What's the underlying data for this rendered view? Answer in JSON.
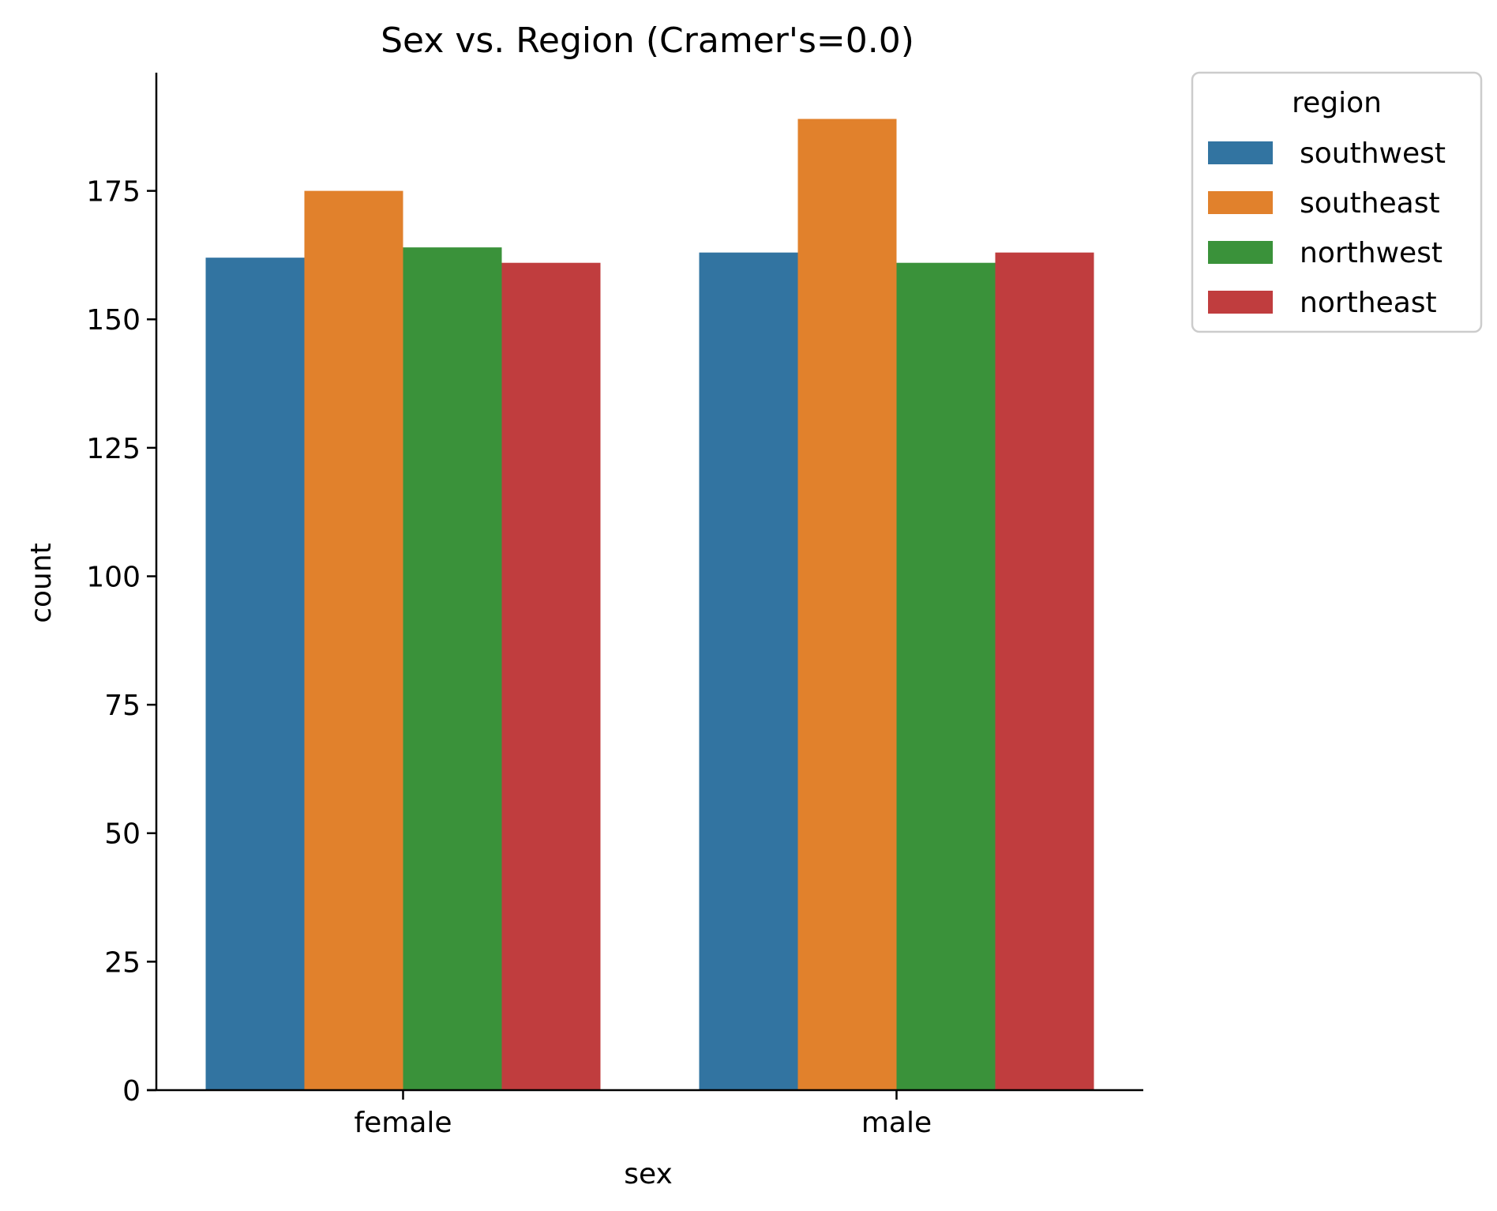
{
  "chart_data": {
    "type": "bar",
    "title": "Sex vs. Region (Cramer's=0.0)",
    "xlabel": "sex",
    "ylabel": "count",
    "categories": [
      "female",
      "male"
    ],
    "ylim": [
      0,
      198
    ],
    "yticks": [
      0,
      25,
      50,
      75,
      100,
      125,
      150,
      175
    ],
    "grid": false,
    "legend": {
      "title": "region",
      "placement": "outside-top-right"
    },
    "series": [
      {
        "name": "southwest",
        "color": "#3274a1",
        "values": [
          162,
          163
        ]
      },
      {
        "name": "southeast",
        "color": "#e1812c",
        "values": [
          175,
          189
        ]
      },
      {
        "name": "northwest",
        "color": "#3a923a",
        "values": [
          164,
          161
        ]
      },
      {
        "name": "northeast",
        "color": "#c03d3e",
        "values": [
          161,
          163
        ]
      }
    ]
  }
}
